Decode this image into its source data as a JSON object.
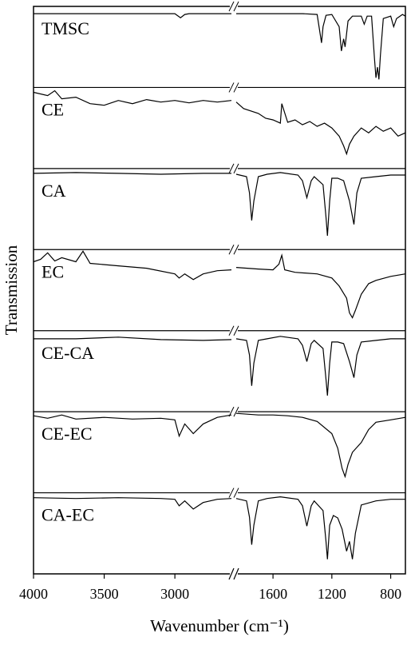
{
  "chart_data": {
    "type": "line",
    "xlabel": "Wavenumber (cm⁻¹)",
    "ylabel": "Transmission",
    "ylim": [
      0,
      100
    ],
    "xsegments": [
      {
        "xlim": [
          4000,
          2600
        ],
        "xticks": [
          4000,
          3500,
          3000
        ]
      },
      {
        "xlim": [
          1850,
          700
        ],
        "xticks": [
          1600,
          1200,
          800
        ]
      }
    ],
    "series": [
      {
        "name": "TMSC",
        "color": "#000000",
        "segments": [
          {
            "x": [
              4000,
              3600,
              3200,
              3000,
              2960,
              2930,
              2900,
              2600
            ],
            "values": [
              91,
              91,
              91,
              91,
              86,
              90,
              91,
              91
            ]
          },
          {
            "x": [
              1850,
              1600,
              1400,
              1300,
              1270,
              1260,
              1240,
              1200,
              1150,
              1135,
              1120,
              1110,
              1090,
              1060,
              1000,
              980,
              960,
              930,
              910,
              900,
              890,
              880,
              870,
              850,
              800,
              780,
              760,
              720,
              700
            ],
            "values": [
              91,
              91,
              91,
              90,
              55,
              75,
              89,
              90,
              75,
              45,
              60,
              50,
              82,
              88,
              88,
              78,
              88,
              88,
              35,
              12,
              25,
              10,
              40,
              85,
              88,
              75,
              85,
              90,
              88
            ]
          }
        ]
      },
      {
        "name": "CE",
        "color": "#000000",
        "segments": [
          {
            "x": [
              4000,
              3900,
              3850,
              3800,
              3700,
              3600,
              3500,
              3400,
              3300,
              3200,
              3100,
              3000,
              2900,
              2800,
              2700,
              2600
            ],
            "values": [
              94,
              90,
              96,
              86,
              88,
              80,
              78,
              84,
              80,
              85,
              82,
              84,
              81,
              84,
              82,
              84
            ]
          },
          {
            "x": [
              1850,
              1800,
              1700,
              1650,
              1600,
              1550,
              1540,
              1500,
              1450,
              1400,
              1350,
              1300,
              1250,
              1200,
              1150,
              1120,
              1100,
              1080,
              1050,
              1000,
              950,
              900,
              850,
              800,
              750,
              700
            ],
            "values": [
              82,
              74,
              68,
              62,
              60,
              56,
              80,
              57,
              60,
              54,
              58,
              52,
              56,
              50,
              40,
              28,
              18,
              30,
              40,
              50,
              44,
              52,
              46,
              50,
              40,
              44
            ]
          }
        ]
      },
      {
        "name": "CA",
        "color": "#000000",
        "segments": [
          {
            "x": [
              4000,
              3700,
              3400,
              3100,
              2800,
              2600
            ],
            "values": [
              94,
              95,
              94,
              93,
              94,
              94
            ]
          },
          {
            "x": [
              1850,
              1780,
              1760,
              1745,
              1730,
              1700,
              1640,
              1550,
              1430,
              1400,
              1370,
              1340,
              1320,
              1260,
              1240,
              1230,
              1215,
              1200,
              1160,
              1120,
              1080,
              1050,
              1030,
              1000,
              900,
              800,
              700
            ],
            "values": [
              93,
              90,
              70,
              36,
              60,
              90,
              93,
              95,
              92,
              85,
              64,
              85,
              90,
              80,
              40,
              17,
              60,
              88,
              88,
              85,
              60,
              31,
              70,
              88,
              90,
              92,
              92
            ]
          }
        ]
      },
      {
        "name": "EC",
        "color": "#000000",
        "segments": [
          {
            "x": [
              4000,
              3950,
              3900,
              3850,
              3800,
              3700,
              3650,
              3600,
              3400,
              3200,
              3000,
              2970,
              2930,
              2870,
              2800,
              2700,
              2600
            ],
            "values": [
              85,
              88,
              96,
              86,
              90,
              85,
              98,
              83,
              80,
              77,
              70,
              65,
              70,
              63,
              70,
              74,
              75
            ]
          },
          {
            "x": [
              1850,
              1700,
              1600,
              1560,
              1540,
              1520,
              1450,
              1300,
              1200,
              1150,
              1100,
              1080,
              1060,
              1040,
              1000,
              950,
              900,
              800,
              700
            ],
            "values": [
              78,
              76,
              75,
              82,
              93,
              75,
              72,
              70,
              65,
              55,
              40,
              22,
              16,
              25,
              45,
              58,
              62,
              67,
              70
            ]
          }
        ]
      },
      {
        "name": "CE-CA",
        "color": "#000000",
        "segments": [
          {
            "x": [
              4000,
              3700,
              3400,
              3100,
              2800,
              2600
            ],
            "values": [
              90,
              90,
              92,
              89,
              88,
              89
            ]
          },
          {
            "x": [
              1850,
              1780,
              1760,
              1745,
              1730,
              1700,
              1640,
              1550,
              1430,
              1400,
              1370,
              1340,
              1320,
              1260,
              1240,
              1230,
              1215,
              1200,
              1160,
              1120,
              1080,
              1050,
              1030,
              1000,
              900,
              800,
              700
            ],
            "values": [
              90,
              88,
              70,
              32,
              60,
              88,
              90,
              93,
              90,
              82,
              62,
              84,
              88,
              78,
              40,
              20,
              60,
              86,
              86,
              84,
              62,
              42,
              70,
              86,
              88,
              90,
              90
            ]
          }
        ]
      },
      {
        "name": "CE-EC",
        "color": "#000000",
        "segments": [
          {
            "x": [
              4000,
              3900,
              3800,
              3700,
              3500,
              3300,
              3100,
              3000,
              2970,
              2930,
              2870,
              2800,
              2700,
              2600
            ],
            "values": [
              95,
              92,
              96,
              91,
              93,
              91,
              92,
              90,
              70,
              85,
              73,
              85,
              93,
              96
            ]
          },
          {
            "x": [
              1850,
              1700,
              1600,
              1500,
              1400,
              1300,
              1200,
              1160,
              1130,
              1110,
              1090,
              1060,
              1000,
              950,
              900,
              800,
              700
            ],
            "values": [
              98,
              96,
              96,
              95,
              93,
              88,
              73,
              55,
              30,
              20,
              35,
              50,
              62,
              78,
              87,
              90,
              93
            ]
          }
        ]
      },
      {
        "name": "CA-EC",
        "color": "#000000",
        "segments": [
          {
            "x": [
              4000,
              3700,
              3400,
              3100,
              3000,
              2970,
              2930,
              2870,
              2800,
              2700,
              2600
            ],
            "values": [
              94,
              93,
              94,
              93,
              92,
              84,
              90,
              80,
              88,
              92,
              93
            ]
          },
          {
            "x": [
              1850,
              1780,
              1760,
              1745,
              1730,
              1700,
              1640,
              1550,
              1430,
              1400,
              1370,
              1340,
              1320,
              1260,
              1240,
              1230,
              1215,
              1190,
              1160,
              1130,
              1100,
              1080,
              1060,
              1040,
              1000,
              900,
              800,
              700
            ],
            "values": [
              93,
              90,
              70,
              36,
              60,
              90,
              93,
              95,
              92,
              84,
              59,
              84,
              90,
              78,
              40,
              18,
              60,
              72,
              69,
              55,
              28,
              40,
              18,
              50,
              85,
              90,
              92,
              92
            ]
          }
        ]
      }
    ]
  }
}
